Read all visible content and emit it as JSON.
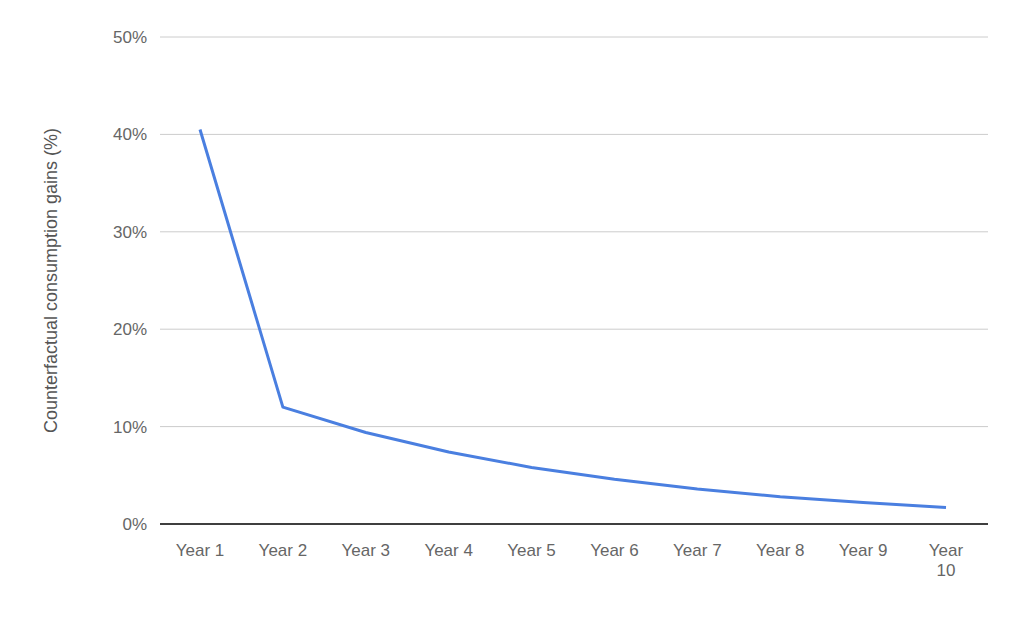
{
  "chart_data": {
    "type": "line",
    "y_label": "Counterfactual consumption gains (%)",
    "categories": [
      "Year 1",
      "Year 2",
      "Year 3",
      "Year 4",
      "Year 5",
      "Year 6",
      "Year 7",
      "Year 8",
      "Year 9",
      "Year 10"
    ],
    "values": [
      40.5,
      12,
      9.4,
      7.4,
      5.8,
      4.6,
      3.6,
      2.8,
      2.2,
      1.7
    ],
    "color": "#4a7fe0",
    "ylim": [
      0,
      50
    ],
    "yticks": [
      {
        "value": 0,
        "label": "0%"
      },
      {
        "value": 10,
        "label": "10%"
      },
      {
        "value": 20,
        "label": "20%"
      },
      {
        "value": 30,
        "label": "30%"
      },
      {
        "value": 40,
        "label": "40%"
      },
      {
        "value": 50,
        "label": "50%"
      }
    ],
    "grid": true
  }
}
